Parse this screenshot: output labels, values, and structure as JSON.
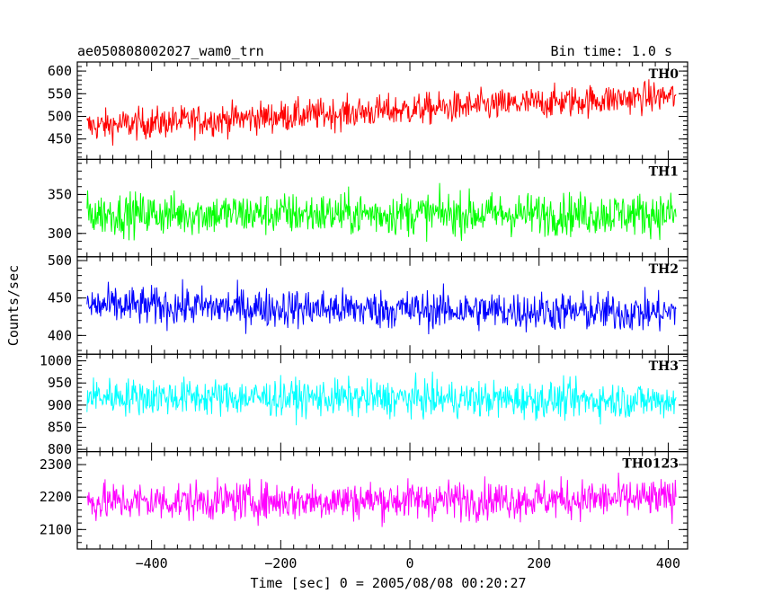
{
  "header": {
    "title": "ae050808002027_wam0_trn",
    "bin_time": "Bin time: 1.0 s"
  },
  "chart_data": {
    "type": "line",
    "xlabel": "Time [sec] 0 = 2005/08/08 00:20:27",
    "ylabel": "Counts/sec",
    "xlim": [
      -515,
      430
    ],
    "xticks": [
      -400,
      -200,
      0,
      200,
      400
    ],
    "series": [
      {
        "name": "TH0",
        "color": "#ff0000",
        "ylim": [
          405,
          620
        ],
        "yticks": [
          450,
          500,
          550,
          600
        ],
        "x_start": -500,
        "x_end": 412,
        "mean_start": 478,
        "mean_end": 545,
        "amplitude": 32
      },
      {
        "name": "TH1",
        "color": "#00ff00",
        "ylim": [
          270,
          395
        ],
        "yticks": [
          300,
          350
        ],
        "x_start": -500,
        "x_end": 412,
        "mean_start": 325,
        "mean_end": 325,
        "amplitude": 25
      },
      {
        "name": "TH2",
        "color": "#0000ff",
        "ylim": [
          375,
          505
        ],
        "yticks": [
          400,
          450,
          500
        ],
        "x_start": -500,
        "x_end": 412,
        "mean_start": 440,
        "mean_end": 430,
        "amplitude": 24
      },
      {
        "name": "TH3",
        "color": "#00ffff",
        "ylim": [
          795,
          1015
        ],
        "yticks": [
          800,
          850,
          900,
          950,
          1000
        ],
        "x_start": -500,
        "x_end": 412,
        "mean_start": 920,
        "mean_end": 910,
        "amplitude": 38
      },
      {
        "name": "TH0123",
        "color": "#ff00ff",
        "ylim": [
          2040,
          2340
        ],
        "yticks": [
          2100,
          2200,
          2300
        ],
        "x_start": -500,
        "x_end": 412,
        "mean_start": 2185,
        "mean_end": 2195,
        "amplitude": 55
      }
    ]
  }
}
